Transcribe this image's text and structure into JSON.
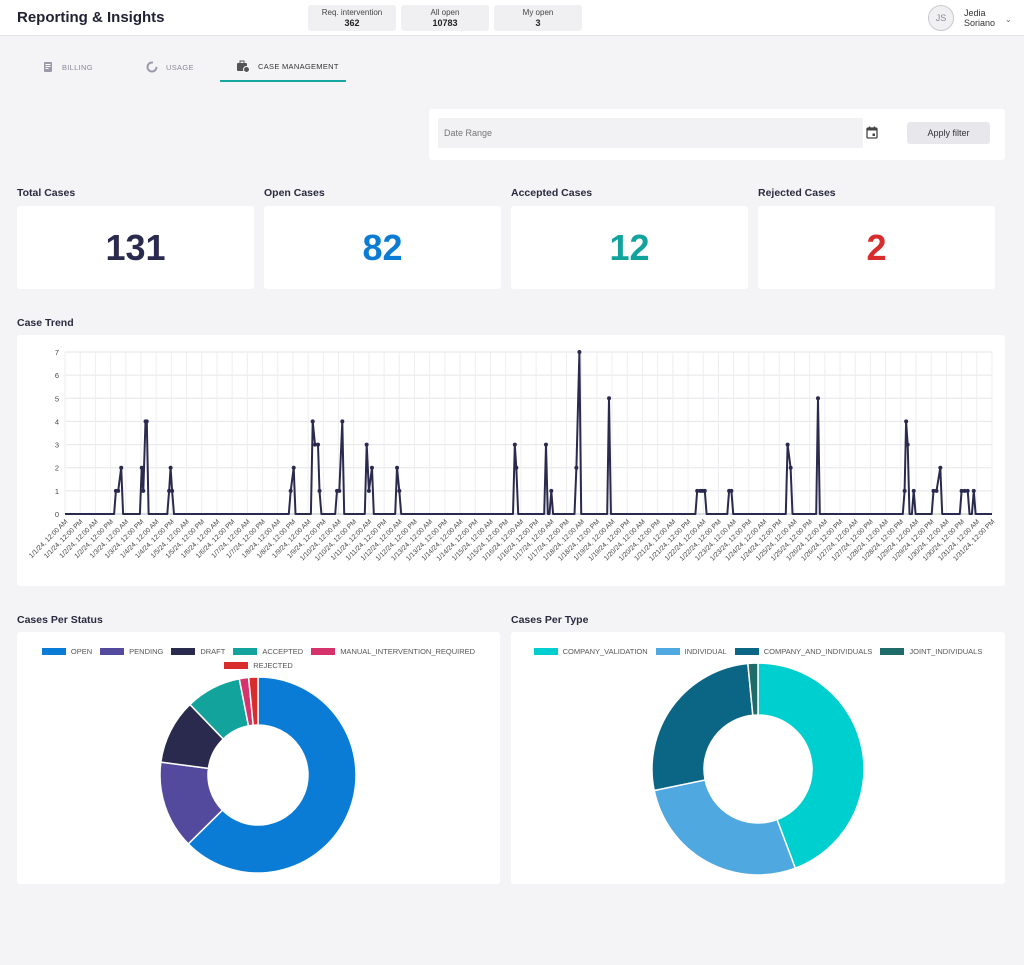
{
  "header": {
    "title": "Reporting & Insights",
    "stats": [
      {
        "label": "Req. intervention",
        "value": "362"
      },
      {
        "label": "All open",
        "value": "10783"
      },
      {
        "label": "My open",
        "value": "3"
      }
    ],
    "user": {
      "initials": "JS",
      "first_name": "Jedia",
      "last_name": "Soriano"
    }
  },
  "tabs": [
    {
      "label": "BILLING",
      "icon": "billing-icon",
      "active": false
    },
    {
      "label": "USAGE",
      "icon": "donut-chart-icon",
      "active": false
    },
    {
      "label": "CASE MANAGEMENT",
      "icon": "briefcase-clock-icon",
      "active": true
    }
  ],
  "filter": {
    "placeholder": "Date Range",
    "apply_label": "Apply filter"
  },
  "kpis": [
    {
      "title": "Total Cases",
      "value": "131",
      "color": "#2a2a4e"
    },
    {
      "title": "Open Cases",
      "value": "82",
      "color": "#0a7cd6"
    },
    {
      "title": "Accepted Cases",
      "value": "12",
      "color": "#12a39d"
    },
    {
      "title": "Rejected Cases",
      "value": "2",
      "color": "#d92d2d"
    }
  ],
  "sections": {
    "trend": "Case Trend",
    "status": "Cases Per Status",
    "type": "Cases Per Type"
  },
  "chart_data": [
    {
      "type": "line",
      "title": "Case Trend",
      "ylim": [
        0,
        7
      ],
      "yticks": [
        0,
        1,
        2,
        3,
        4,
        5,
        6,
        7
      ],
      "color": "#2a2a4e",
      "grid": true,
      "x_tick_labels": [
        "1/1/24, 12:00 AM",
        "1/1/24, 12:00 PM",
        "1/2/24, 12:00 AM",
        "1/2/24, 12:00 PM",
        "1/3/24, 12:00 AM",
        "1/3/24, 12:00 PM",
        "1/4/24, 12:00 AM",
        "1/4/24, 12:00 PM",
        "1/5/24, 12:00 AM",
        "1/5/24, 12:00 PM",
        "1/6/24, 12:00 AM",
        "1/6/24, 12:00 PM",
        "1/7/24, 12:00 AM",
        "1/7/24, 12:00 PM",
        "1/8/24, 12:00 AM",
        "1/8/24, 12:00 PM",
        "1/9/24, 12:00 AM",
        "1/9/24, 12:00 PM",
        "1/10/24, 12:00 AM",
        "1/10/24, 12:00 PM",
        "1/11/24, 12:00 AM",
        "1/11/24, 12:00 PM",
        "1/12/24, 12:00 AM",
        "1/12/24, 12:00 PM",
        "1/13/24, 12:00 AM",
        "1/13/24, 12:00 PM",
        "1/14/24, 12:00 AM",
        "1/14/24, 12:00 PM",
        "1/15/24, 12:00 AM",
        "1/15/24, 12:00 PM",
        "1/16/24, 12:00 AM",
        "1/16/24, 12:00 PM",
        "1/17/24, 12:00 AM",
        "1/17/24, 12:00 PM",
        "1/18/24, 12:00 AM",
        "1/18/24, 12:00 PM",
        "1/19/24, 12:00 AM",
        "1/19/24, 12:00 PM",
        "1/20/24, 12:00 AM",
        "1/20/24, 12:00 PM",
        "1/21/24, 12:00 AM",
        "1/21/24, 12:00 PM",
        "1/22/24, 12:00 AM",
        "1/22/24, 12:00 PM",
        "1/23/24, 12:00 AM",
        "1/23/24, 12:00 PM",
        "1/24/24, 12:00 AM",
        "1/24/24, 12:00 PM",
        "1/25/24, 12:00 AM",
        "1/25/24, 12:00 PM",
        "1/26/24, 12:00 AM",
        "1/26/24, 12:00 PM",
        "1/27/24, 12:00 AM",
        "1/27/24, 12:00 PM",
        "1/28/24, 12:00 AM",
        "1/28/24, 12:00 PM",
        "1/29/24, 12:00 AM",
        "1/29/24, 12:00 PM",
        "1/30/24, 12:00 AM",
        "1/30/24, 12:00 PM",
        "1/31/24, 12:00 AM",
        "1/31/24, 12:00 PM"
      ],
      "peaks": [
        {
          "x": 3.35,
          "y": 1
        },
        {
          "x": 3.5,
          "y": 1
        },
        {
          "x": 3.7,
          "y": 2
        },
        {
          "x": 5.05,
          "y": 2
        },
        {
          "x": 5.15,
          "y": 1
        },
        {
          "x": 5.3,
          "y": 4
        },
        {
          "x": 5.38,
          "y": 4
        },
        {
          "x": 6.85,
          "y": 1
        },
        {
          "x": 6.95,
          "y": 2
        },
        {
          "x": 7.05,
          "y": 1
        },
        {
          "x": 14.85,
          "y": 1
        },
        {
          "x": 15.05,
          "y": 2
        },
        {
          "x": 16.3,
          "y": 4
        },
        {
          "x": 16.45,
          "y": 3
        },
        {
          "x": 16.65,
          "y": 3
        },
        {
          "x": 16.75,
          "y": 1
        },
        {
          "x": 17.9,
          "y": 1
        },
        {
          "x": 18.05,
          "y": 1
        },
        {
          "x": 18.25,
          "y": 4
        },
        {
          "x": 19.85,
          "y": 3
        },
        {
          "x": 20.0,
          "y": 1
        },
        {
          "x": 20.2,
          "y": 2
        },
        {
          "x": 21.85,
          "y": 2
        },
        {
          "x": 22.0,
          "y": 1
        },
        {
          "x": 29.6,
          "y": 3
        },
        {
          "x": 29.7,
          "y": 2
        },
        {
          "x": 31.65,
          "y": 3
        },
        {
          "x": 32.0,
          "y": 1
        },
        {
          "x": 33.65,
          "y": 2
        },
        {
          "x": 33.85,
          "y": 7
        },
        {
          "x": 35.8,
          "y": 5
        },
        {
          "x": 41.6,
          "y": 1
        },
        {
          "x": 41.8,
          "y": 1
        },
        {
          "x": 41.95,
          "y": 1
        },
        {
          "x": 42.1,
          "y": 1
        },
        {
          "x": 43.7,
          "y": 1
        },
        {
          "x": 43.85,
          "y": 1
        },
        {
          "x": 47.55,
          "y": 3
        },
        {
          "x": 47.75,
          "y": 2
        },
        {
          "x": 49.55,
          "y": 5
        },
        {
          "x": 55.25,
          "y": 1
        },
        {
          "x": 55.35,
          "y": 4
        },
        {
          "x": 55.45,
          "y": 3
        },
        {
          "x": 55.85,
          "y": 1
        },
        {
          "x": 57.15,
          "y": 1
        },
        {
          "x": 57.35,
          "y": 1
        },
        {
          "x": 57.6,
          "y": 2
        },
        {
          "x": 59.0,
          "y": 1
        },
        {
          "x": 59.2,
          "y": 1
        },
        {
          "x": 59.4,
          "y": 1
        },
        {
          "x": 59.8,
          "y": 1
        }
      ]
    },
    {
      "type": "pie",
      "title": "Cases Per Status",
      "donut": true,
      "legend_position": "top",
      "slices": [
        {
          "label": "OPEN",
          "value": 82,
          "color": "#0a7cd6"
        },
        {
          "label": "PENDING",
          "value": 19,
          "color": "#534a9d"
        },
        {
          "label": "DRAFT",
          "value": 14,
          "color": "#2a2a4e"
        },
        {
          "label": "ACCEPTED",
          "value": 12,
          "color": "#12a39d"
        },
        {
          "label": "MANUAL_INTERVENTION_REQUIRED",
          "value": 2,
          "color": "#d6336c"
        },
        {
          "label": "REJECTED",
          "value": 2,
          "color": "#d92d2d"
        }
      ]
    },
    {
      "type": "pie",
      "title": "Cases Per Type",
      "donut": true,
      "legend_position": "top",
      "slices": [
        {
          "label": "COMPANY_VALIDATION",
          "value": 58,
          "color": "#00cfcf"
        },
        {
          "label": "INDIVIDUAL",
          "value": 36,
          "color": "#4fa8e0"
        },
        {
          "label": "COMPANY_AND_INDIVIDUALS",
          "value": 35,
          "color": "#0b6584"
        },
        {
          "label": "JOINT_INDIVIDUALS",
          "value": 2,
          "color": "#1e6b69"
        }
      ]
    }
  ]
}
